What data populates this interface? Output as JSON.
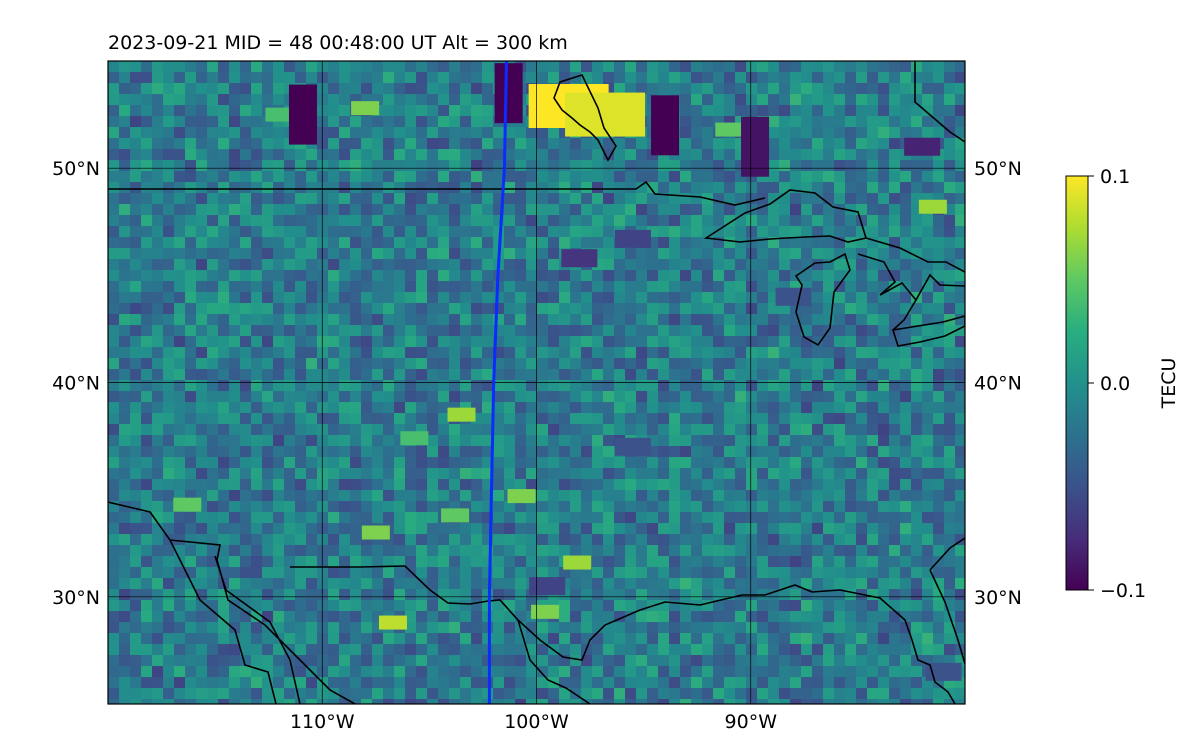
{
  "chart_data": {
    "type": "heatmap",
    "title": "2023-09-21  MID =  48    00:48:00  UT  Alt = 300 km",
    "projection": "map (lon/lat)",
    "xlim": [
      -120,
      -80
    ],
    "ylim": [
      25,
      55
    ],
    "lon_ticks": [
      -110,
      -100,
      -90
    ],
    "lon_tick_labels": [
      "110°W",
      "100°W",
      "90°W"
    ],
    "lat_ticks": [
      30,
      40,
      50
    ],
    "lat_tick_labels": [
      "30°N",
      "40°N",
      "50°N"
    ],
    "grid": true,
    "colormap": "viridis",
    "colorbar": {
      "label": "TECU",
      "vmin": -0.1,
      "vmax": 0.1,
      "ticks": [
        -0.1,
        0.0,
        0.1
      ],
      "tick_labels": [
        "−0.1",
        "0.0",
        "0.1"
      ],
      "placement": "right"
    },
    "meridian_line": {
      "color": "#0a2cff",
      "lon_at_lat": [
        [
          -101.4,
          55
        ],
        [
          -101.5,
          50
        ],
        [
          -101.8,
          45
        ],
        [
          -102.0,
          40
        ],
        [
          -102.1,
          35
        ],
        [
          -102.2,
          30
        ],
        [
          -102.2,
          25
        ]
      ]
    },
    "hotspots": [
      {
        "lon": -98.5,
        "lat": 52.9,
        "value": 0.1
      },
      {
        "lon": -96.8,
        "lat": 52.5,
        "value": 0.09
      },
      {
        "lon": -108,
        "lat": 52.8,
        "value": 0.06
      },
      {
        "lon": -112,
        "lat": 52.5,
        "value": 0.04
      },
      {
        "lon": -81.5,
        "lat": 48.2,
        "value": 0.07
      },
      {
        "lon": -91,
        "lat": 51.8,
        "value": 0.05
      },
      {
        "lon": -103.5,
        "lat": 38.5,
        "value": 0.07
      },
      {
        "lon": -100.7,
        "lat": 34.7,
        "value": 0.06
      },
      {
        "lon": -98.1,
        "lat": 31.6,
        "value": 0.07
      },
      {
        "lon": -106.7,
        "lat": 28.8,
        "value": 0.08
      },
      {
        "lon": -107.5,
        "lat": 33.0,
        "value": 0.06
      },
      {
        "lon": -116.3,
        "lat": 34.3,
        "value": 0.05
      },
      {
        "lon": -103.8,
        "lat": 33.8,
        "value": 0.05
      },
      {
        "lon": -99.6,
        "lat": 29.3,
        "value": 0.06
      },
      {
        "lon": -105.7,
        "lat": 37.4,
        "value": 0.04
      }
    ],
    "coldspots": [
      {
        "lon": -110.9,
        "lat": 52.5,
        "value": -0.1
      },
      {
        "lon": -101.3,
        "lat": 53.5,
        "value": -0.1
      },
      {
        "lon": -94,
        "lat": 52.0,
        "value": -0.1
      },
      {
        "lon": -89.8,
        "lat": 51.0,
        "value": -0.09
      },
      {
        "lon": -82.0,
        "lat": 51.0,
        "value": -0.08
      },
      {
        "lon": -98,
        "lat": 45.8,
        "value": -0.07
      },
      {
        "lon": -95.5,
        "lat": 46.7,
        "value": -0.06
      },
      {
        "lon": -99.5,
        "lat": 30.5,
        "value": -0.06
      },
      {
        "lon": -81.0,
        "lat": 26.5,
        "value": -0.05
      },
      {
        "lon": -88.0,
        "lat": 44.0,
        "value": -0.05
      },
      {
        "lon": -95.5,
        "lat": 37.0,
        "value": -0.05
      }
    ]
  }
}
